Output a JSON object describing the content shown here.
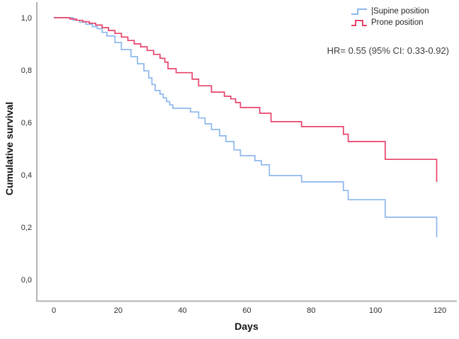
{
  "chart_data": {
    "type": "line",
    "subtype": "kaplan-meier-step",
    "title": "",
    "xlabel": "Days",
    "ylabel": "Cumulative survival",
    "xlim": [
      0,
      120
    ],
    "ylim": [
      0.0,
      1.0
    ],
    "grid": false,
    "legend_position": "top-right",
    "x_ticks": [
      0,
      20,
      40,
      60,
      80,
      100,
      120
    ],
    "y_ticks": [
      {
        "value": 1.0,
        "label": "1,0"
      },
      {
        "value": 0.8,
        "label": "0,8"
      },
      {
        "value": 0.6,
        "label": "0,6"
      },
      {
        "value": 0.4,
        "label": "0,4"
      },
      {
        "value": 0.2,
        "label": "0,2"
      },
      {
        "value": 0.0,
        "label": "0,0"
      }
    ],
    "series": [
      {
        "name": "Supine position",
        "color": "#8db7ef",
        "points": [
          [
            0,
            1.0
          ],
          [
            6,
            0.99
          ],
          [
            8,
            0.983
          ],
          [
            10,
            0.975
          ],
          [
            12,
            0.966
          ],
          [
            13.5,
            0.958
          ],
          [
            15,
            0.944
          ],
          [
            16.5,
            0.93
          ],
          [
            19,
            0.905
          ],
          [
            21,
            0.878
          ],
          [
            24,
            0.851
          ],
          [
            26,
            0.824
          ],
          [
            28,
            0.797
          ],
          [
            29.5,
            0.77
          ],
          [
            30.5,
            0.745
          ],
          [
            31.5,
            0.722
          ],
          [
            33,
            0.708
          ],
          [
            34,
            0.694
          ],
          [
            35,
            0.68
          ],
          [
            36,
            0.667
          ],
          [
            37,
            0.654
          ],
          [
            42.5,
            0.64
          ],
          [
            45,
            0.617
          ],
          [
            47,
            0.595
          ],
          [
            49,
            0.573
          ],
          [
            51.5,
            0.549
          ],
          [
            53.5,
            0.527
          ],
          [
            56,
            0.495
          ],
          [
            58,
            0.473
          ],
          [
            62.5,
            0.454
          ],
          [
            64.5,
            0.438
          ],
          [
            67,
            0.397
          ],
          [
            77,
            0.373
          ],
          [
            90,
            0.34
          ],
          [
            91.5,
            0.305
          ],
          [
            103,
            0.238
          ],
          [
            119,
            0.162
          ]
        ]
      },
      {
        "name": "Prone position",
        "color": "#e8436a",
        "points": [
          [
            0,
            1.0
          ],
          [
            5,
            0.995
          ],
          [
            7,
            0.99
          ],
          [
            9,
            0.985
          ],
          [
            11,
            0.979
          ],
          [
            13,
            0.972
          ],
          [
            15,
            0.962
          ],
          [
            17,
            0.951
          ],
          [
            19,
            0.94
          ],
          [
            21,
            0.926
          ],
          [
            23,
            0.913
          ],
          [
            25,
            0.9
          ],
          [
            27,
            0.889
          ],
          [
            29,
            0.875
          ],
          [
            31,
            0.86
          ],
          [
            33,
            0.845
          ],
          [
            34.5,
            0.83
          ],
          [
            35.5,
            0.805
          ],
          [
            38,
            0.79
          ],
          [
            43,
            0.765
          ],
          [
            45,
            0.74
          ],
          [
            49,
            0.716
          ],
          [
            53,
            0.7
          ],
          [
            55,
            0.69
          ],
          [
            56.5,
            0.676
          ],
          [
            58,
            0.657
          ],
          [
            64,
            0.635
          ],
          [
            67.5,
            0.603
          ],
          [
            77,
            0.584
          ],
          [
            90,
            0.555
          ],
          [
            91.5,
            0.527
          ],
          [
            103,
            0.459
          ],
          [
            119,
            0.373
          ]
        ]
      }
    ]
  },
  "legend": {
    "supine_label": "|Supine position",
    "prone_label": "Prone position"
  },
  "annotation": {
    "text": "HR= 0.55 (95% CI: 0.33-0.92)"
  },
  "colors": {
    "supine": "#8db7ef",
    "prone": "#e8436a",
    "axis_line": "#b3b3b3",
    "tick_text": "#2b2b2b"
  }
}
